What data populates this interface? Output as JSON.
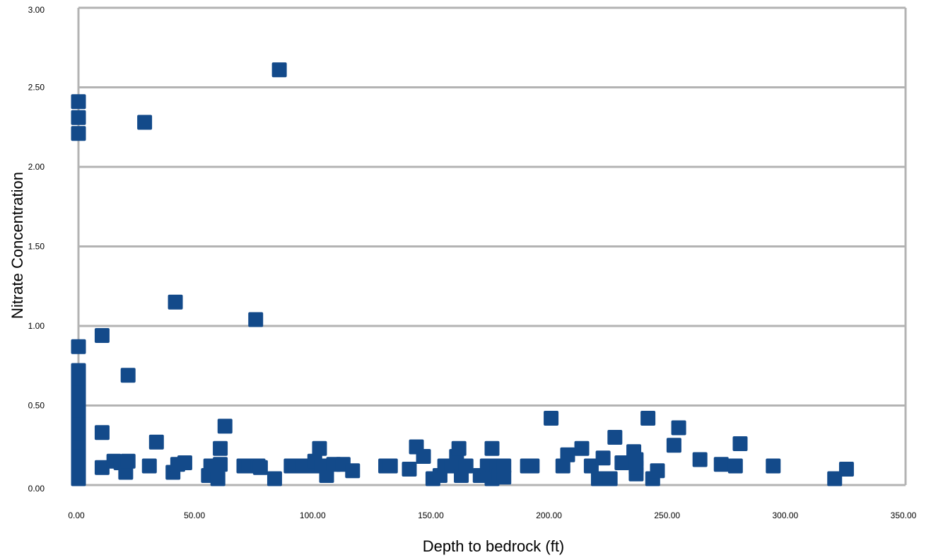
{
  "chart_data": {
    "type": "scatter",
    "title": "",
    "xlabel": "Depth to bedrock (ft)",
    "ylabel": "Nitrate Concentration",
    "xlim": [
      0,
      350
    ],
    "ylim": [
      0,
      3
    ],
    "x_ticks": [
      "0.00",
      "50.00",
      "100.00",
      "150.00",
      "200.00",
      "250.00",
      "300.00",
      "350.00"
    ],
    "y_ticks": [
      "0.00",
      "0.50",
      "1.00",
      "1.50",
      "2.00",
      "2.50",
      "3.00"
    ],
    "grid": "horizontal",
    "legend": "none",
    "marker": "square",
    "marker_color": "#134a8a",
    "grid_color": "#b3b3b3",
    "points": [
      [
        0,
        0.04
      ],
      [
        0,
        0.06
      ],
      [
        0,
        0.08
      ],
      [
        0,
        0.1
      ],
      [
        0,
        0.12
      ],
      [
        0,
        0.14
      ],
      [
        0,
        0.16
      ],
      [
        0,
        0.18
      ],
      [
        0,
        0.2
      ],
      [
        0,
        0.22
      ],
      [
        0,
        0.24
      ],
      [
        0,
        0.27
      ],
      [
        0,
        0.3
      ],
      [
        0,
        0.33
      ],
      [
        0,
        0.36
      ],
      [
        0,
        0.4
      ],
      [
        0,
        0.43
      ],
      [
        0,
        0.47
      ],
      [
        0,
        0.52
      ],
      [
        0,
        0.57
      ],
      [
        0,
        0.62
      ],
      [
        0,
        0.67
      ],
      [
        0,
        0.72
      ],
      [
        0,
        0.87
      ],
      [
        0,
        2.21
      ],
      [
        0,
        2.31
      ],
      [
        0,
        2.41
      ],
      [
        10,
        0.94
      ],
      [
        10,
        0.33
      ],
      [
        10,
        0.11
      ],
      [
        15,
        0.15
      ],
      [
        18,
        0.14
      ],
      [
        20,
        0.08
      ],
      [
        21,
        0.15
      ],
      [
        21,
        0.69
      ],
      [
        28,
        2.28
      ],
      [
        30,
        0.12
      ],
      [
        33,
        0.27
      ],
      [
        40,
        0.08
      ],
      [
        41,
        1.15
      ],
      [
        42,
        0.13
      ],
      [
        45,
        0.14
      ],
      [
        55,
        0.06
      ],
      [
        56,
        0.12
      ],
      [
        59,
        0.04
      ],
      [
        60,
        0.13
      ],
      [
        60,
        0.23
      ],
      [
        62,
        0.37
      ],
      [
        70,
        0.12
      ],
      [
        72,
        0.12
      ],
      [
        75,
        1.04
      ],
      [
        76,
        0.12
      ],
      [
        77,
        0.11
      ],
      [
        83,
        0.04
      ],
      [
        85,
        2.61
      ],
      [
        90,
        0.12
      ],
      [
        92,
        0.12
      ],
      [
        95,
        0.12
      ],
      [
        97,
        0.12
      ],
      [
        99,
        0.12
      ],
      [
        100,
        0.15
      ],
      [
        102,
        0.23
      ],
      [
        103,
        0.12
      ],
      [
        105,
        0.06
      ],
      [
        108,
        0.13
      ],
      [
        112,
        0.13
      ],
      [
        116,
        0.09
      ],
      [
        130,
        0.12
      ],
      [
        132,
        0.12
      ],
      [
        140,
        0.1
      ],
      [
        143,
        0.24
      ],
      [
        146,
        0.18
      ],
      [
        150,
        0.04
      ],
      [
        153,
        0.06
      ],
      [
        155,
        0.12
      ],
      [
        158,
        0.12
      ],
      [
        160,
        0.18
      ],
      [
        161,
        0.23
      ],
      [
        162,
        0.06
      ],
      [
        164,
        0.12
      ],
      [
        170,
        0.06
      ],
      [
        173,
        0.12
      ],
      [
        175,
        0.04
      ],
      [
        175,
        0.23
      ],
      [
        177,
        0.12
      ],
      [
        178,
        0.06
      ],
      [
        180,
        0.05
      ],
      [
        180,
        0.12
      ],
      [
        190,
        0.12
      ],
      [
        192,
        0.12
      ],
      [
        200,
        0.42
      ],
      [
        205,
        0.12
      ],
      [
        207,
        0.19
      ],
      [
        213,
        0.23
      ],
      [
        217,
        0.12
      ],
      [
        220,
        0.04
      ],
      [
        222,
        0.17
      ],
      [
        225,
        0.04
      ],
      [
        227,
        0.3
      ],
      [
        230,
        0.14
      ],
      [
        235,
        0.21
      ],
      [
        236,
        0.16
      ],
      [
        236,
        0.07
      ],
      [
        236,
        0.11
      ],
      [
        241,
        0.42
      ],
      [
        243,
        0.04
      ],
      [
        245,
        0.09
      ],
      [
        252,
        0.25
      ],
      [
        254,
        0.36
      ],
      [
        263,
        0.16
      ],
      [
        272,
        0.13
      ],
      [
        278,
        0.12
      ],
      [
        280,
        0.26
      ],
      [
        294,
        0.12
      ],
      [
        320,
        0.04
      ],
      [
        325,
        0.1
      ]
    ]
  }
}
